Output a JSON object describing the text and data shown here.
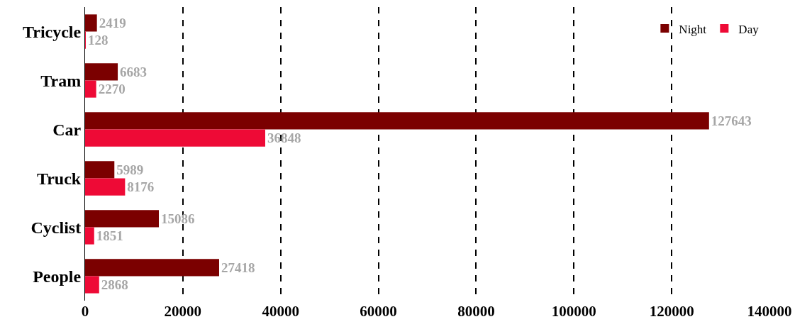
{
  "chart_data": {
    "type": "bar",
    "orientation": "horizontal",
    "categories": [
      "Tricycle",
      "Tram",
      "Car",
      "Truck",
      "Cyclist",
      "People"
    ],
    "series": [
      {
        "name": "Night",
        "color": "#7b0000",
        "values": [
          2419,
          6683,
          127643,
          5989,
          15086,
          27418
        ]
      },
      {
        "name": "Day",
        "color": "#ee0a36",
        "values": [
          128,
          2270,
          36848,
          8176,
          1851,
          2868
        ]
      }
    ],
    "xlim": [
      0,
      140000
    ],
    "xticks": [
      0,
      20000,
      40000,
      60000,
      80000,
      100000,
      120000,
      140000
    ],
    "grid": "x",
    "legend": "top right",
    "data_labels": true
  }
}
